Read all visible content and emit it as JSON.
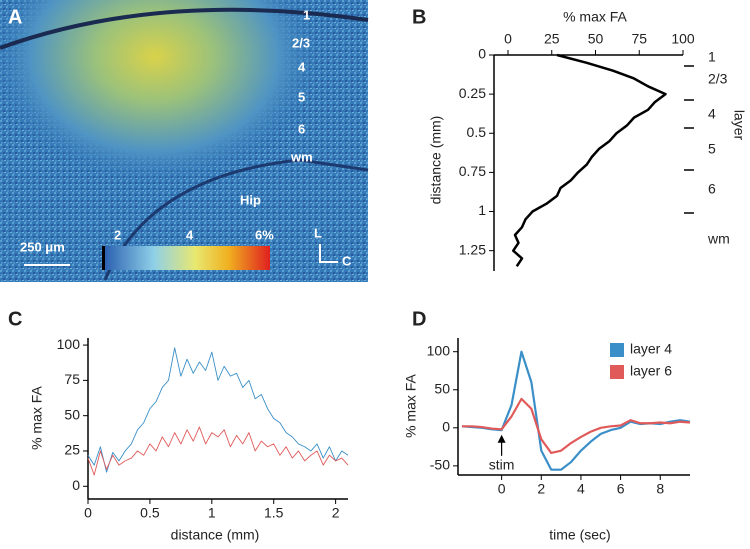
{
  "panel_a": {
    "label": "A",
    "layers": [
      "1",
      "2/3",
      "4",
      "5",
      "6",
      "wm"
    ],
    "region": "Hip",
    "scale_bar": "250 μm",
    "colorbar_labels": [
      "2",
      "4",
      "6%"
    ],
    "orientation": [
      "L",
      "C"
    ]
  },
  "chart_data": [
    {
      "label": "B",
      "type": "line",
      "orientation": "horizontal",
      "xlabel": "% max FA",
      "ylabel": "distance (mm)",
      "x_axis_top": true,
      "y_inverted": true,
      "xlim": [
        -8,
        100
      ],
      "xticks": [
        0,
        25,
        50,
        75,
        100
      ],
      "ylim": [
        0,
        1.38
      ],
      "yticks": [
        0,
        0.25,
        0.5,
        0.75,
        1,
        1.25
      ],
      "layers_title": "layer",
      "layers": [
        "1",
        "2/3",
        "4",
        "5",
        "6",
        "wm"
      ],
      "x": [
        0,
        0.05,
        0.1,
        0.15,
        0.2,
        0.25,
        0.3,
        0.35,
        0.4,
        0.45,
        0.5,
        0.55,
        0.6,
        0.65,
        0.7,
        0.75,
        0.8,
        0.85,
        0.9,
        0.95,
        1,
        1.05,
        1.1,
        1.15,
        1.2,
        1.25,
        1.3,
        1.35
      ],
      "values": [
        28,
        45,
        60,
        72,
        80,
        90,
        84,
        80,
        72,
        68,
        62,
        58,
        52,
        48,
        45,
        40,
        36,
        30,
        28,
        22,
        14,
        10,
        8,
        4,
        6,
        3,
        8,
        5
      ],
      "color": "#000000"
    },
    {
      "label": "C",
      "type": "line",
      "xlabel": "distance (mm)",
      "ylabel": "% max FA",
      "xlim": [
        0,
        2.1
      ],
      "xticks": [
        0,
        0.5,
        1,
        1.5,
        2
      ],
      "ylim": [
        -9,
        105
      ],
      "yticks": [
        0,
        25,
        50,
        75,
        100
      ],
      "x": [
        0,
        0.05,
        0.1,
        0.15,
        0.2,
        0.25,
        0.3,
        0.35,
        0.4,
        0.45,
        0.5,
        0.55,
        0.6,
        0.65,
        0.7,
        0.75,
        0.8,
        0.85,
        0.9,
        0.95,
        1,
        1.05,
        1.1,
        1.15,
        1.2,
        1.25,
        1.3,
        1.35,
        1.4,
        1.45,
        1.5,
        1.55,
        1.6,
        1.65,
        1.7,
        1.75,
        1.8,
        1.85,
        1.9,
        1.95,
        2,
        2.05,
        2.1
      ],
      "series": [
        {
          "color": "#3a8fc8",
          "values": [
            22,
            15,
            28,
            10,
            24,
            18,
            25,
            30,
            40,
            45,
            55,
            60,
            70,
            75,
            98,
            78,
            90,
            80,
            88,
            82,
            95,
            75,
            85,
            78,
            80,
            70,
            75,
            62,
            65,
            55,
            48,
            45,
            38,
            35,
            30,
            28,
            25,
            30,
            20,
            28,
            18,
            25,
            22
          ]
        },
        {
          "color": "#e05a5a",
          "values": [
            20,
            8,
            25,
            12,
            22,
            15,
            18,
            20,
            25,
            22,
            30,
            25,
            35,
            28,
            38,
            30,
            40,
            32,
            42,
            30,
            38,
            35,
            40,
            28,
            36,
            30,
            38,
            25,
            32,
            28,
            30,
            22,
            28,
            20,
            25,
            18,
            22,
            25,
            15,
            22,
            18,
            20,
            15
          ]
        }
      ]
    },
    {
      "label": "D",
      "type": "line",
      "xlabel": "time (sec)",
      "ylabel": "% max FA",
      "xlim": [
        -2.2,
        9.5
      ],
      "xticks": [
        0,
        2,
        4,
        6,
        8
      ],
      "ylim": [
        -62,
        118
      ],
      "yticks": [
        -50,
        0,
        50,
        100
      ],
      "legend": "upper right",
      "annotation": {
        "text": "stim",
        "x": 0
      },
      "x": [
        -2,
        -1.5,
        -1,
        -0.5,
        0,
        0.5,
        1,
        1.5,
        2,
        2.5,
        3,
        3.5,
        4,
        4.5,
        5,
        5.5,
        6,
        6.5,
        7,
        7.5,
        8,
        8.5,
        9,
        9.5
      ],
      "series": [
        {
          "name": "layer 4",
          "color": "#3a8fc8",
          "values": [
            2,
            1,
            0,
            -2,
            -3,
            30,
            100,
            60,
            -30,
            -55,
            -55,
            -45,
            -30,
            -18,
            -8,
            -3,
            0,
            8,
            5,
            6,
            5,
            8,
            10,
            8
          ]
        },
        {
          "name": "layer 6",
          "color": "#e05a5a",
          "values": [
            2,
            2,
            1,
            -1,
            -2,
            15,
            38,
            25,
            -15,
            -33,
            -30,
            -20,
            -12,
            -5,
            0,
            2,
            3,
            10,
            6,
            6,
            7,
            6,
            8,
            7
          ]
        }
      ]
    }
  ]
}
